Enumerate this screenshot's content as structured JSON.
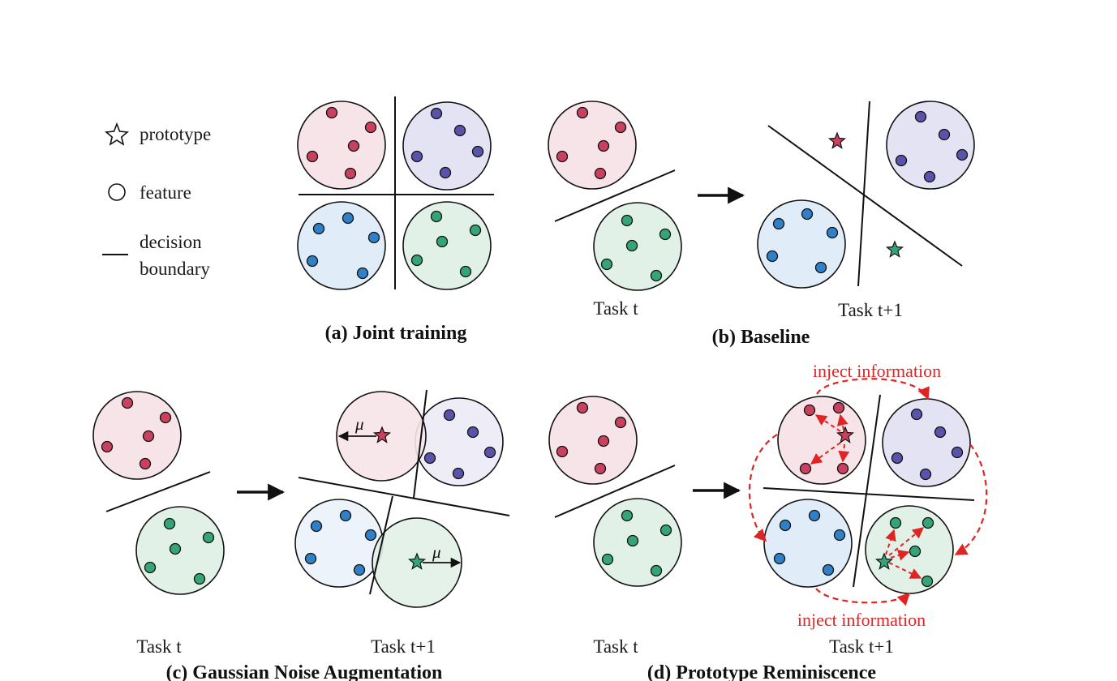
{
  "legend": {
    "prototype": "prototype",
    "feature": "feature",
    "decision_line1": "decision",
    "decision_line2": "boundary"
  },
  "panels": {
    "a": {
      "caption": "(a) Joint training"
    },
    "b": {
      "caption": "(b) Baseline",
      "task_left": "Task t",
      "task_right": "Task t+1"
    },
    "c": {
      "caption": "(c) Gaussian Noise Augmentation",
      "task_left": "Task t",
      "task_right": "Task t+1",
      "mu": "μ"
    },
    "d": {
      "caption": "(d) Prototype Reminiscence",
      "task_left": "Task t",
      "task_right": "Task t+1",
      "inject_top": "inject information",
      "inject_bottom": "inject information"
    }
  },
  "colors": {
    "red_fill": "#f7e4e8",
    "red_dot": "#c8415e",
    "purple_fill": "#e4e3f3",
    "purple_dot": "#5a53aa",
    "blue_fill": "#e0ecf7",
    "blue_dot": "#2f80c6",
    "green_fill": "#e1f1e8",
    "green_dot": "#35a477",
    "inject_red": "#e02424"
  }
}
